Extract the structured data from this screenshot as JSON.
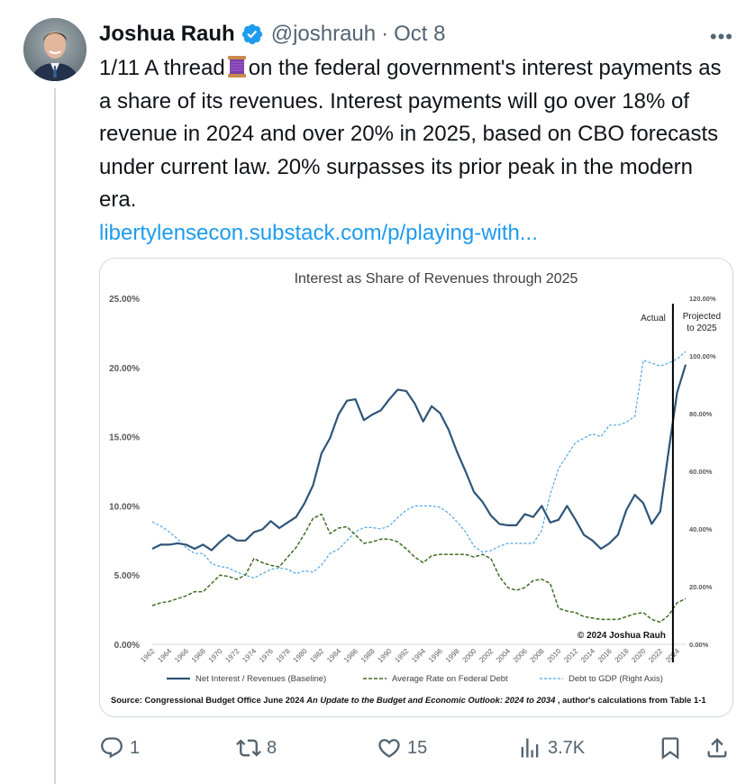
{
  "tweet": {
    "author_name": "Joshua Rauh",
    "handle": "@joshrauh",
    "separator": "·",
    "date": "Oct 8",
    "more_label": "•••",
    "text_before_icon": "1/11 A thread",
    "text_after_icon": "on the federal government's interest payments as a share of its revenues. Interest payments will go over 18% of revenue in 2024 and over 20% in 2025, based on CBO forecasts under current law. 20% surpasses its prior peak in the modern era.",
    "link_text": "libertylensecon.substack.com/p/playing-with...",
    "thread_icon": "spool-of-thread-emoji",
    "avatar_icon": "profile-photo",
    "verified_icon": "verified-badge-icon"
  },
  "actions": {
    "replies": "1",
    "reposts": "8",
    "likes": "15",
    "views": "3.7K",
    "reply_icon": "reply-icon",
    "repost_icon": "repost-icon",
    "like_icon": "heart-icon",
    "views_icon": "views-icon",
    "bookmark_icon": "bookmark-icon",
    "share_icon": "share-icon"
  },
  "colors": {
    "link": "#1d9bf0",
    "muted": "#536471",
    "verified": "#1d9bf0",
    "series_revenue": "#2f5577",
    "series_rate": "#3f6e24",
    "series_debt": "#4ea6e6"
  },
  "chart_data": {
    "type": "line",
    "title": "Interest as Share of Revenues through 2025",
    "annotation_actual": "Actual",
    "annotation_projected_1": "Projected",
    "annotation_projected_2": "to 2025",
    "copyright": "© 2024 Joshua Rauh",
    "source_prefix": "Source: Congressional Budget Office June 2024",
    "source_italic": "An Update to the Budget and Economic Outlook: 2024 to 2034",
    "source_suffix": ", author's calculations from Table 1-1",
    "left_ticks": [
      "0.00%",
      "5.00%",
      "10.00%",
      "15.00%",
      "20.00%",
      "25.00%"
    ],
    "right_ticks": [
      "0.00%",
      "20.00%",
      "40.00%",
      "60.00%",
      "80.00%",
      "100.00%",
      "120.00%"
    ],
    "ylim_left": [
      0,
      25
    ],
    "ylim_right": [
      0,
      120
    ],
    "x_ticks": [
      "1962",
      "1964",
      "1966",
      "1968",
      "1970",
      "1972",
      "1974",
      "1976",
      "1978",
      "1980",
      "1982",
      "1984",
      "1986",
      "1988",
      "1990",
      "1992",
      "1994",
      "1996",
      "1998",
      "2000",
      "2002",
      "2004",
      "2006",
      "2008",
      "2010",
      "2012",
      "2014",
      "2016",
      "2018",
      "2020",
      "2022",
      "2024"
    ],
    "projection_divider_x": 2023.5,
    "grid": false,
    "legend_position": "bottom",
    "x": [
      1962,
      1963,
      1964,
      1965,
      1966,
      1967,
      1968,
      1969,
      1970,
      1971,
      1972,
      1973,
      1974,
      1975,
      1976,
      1977,
      1978,
      1979,
      1980,
      1981,
      1982,
      1983,
      1984,
      1985,
      1986,
      1987,
      1988,
      1989,
      1990,
      1991,
      1992,
      1993,
      1994,
      1995,
      1996,
      1997,
      1998,
      1999,
      2000,
      2001,
      2002,
      2003,
      2004,
      2005,
      2006,
      2007,
      2008,
      2009,
      2010,
      2011,
      2012,
      2013,
      2014,
      2015,
      2016,
      2017,
      2018,
      2019,
      2020,
      2021,
      2022,
      2023,
      2024,
      2025
    ],
    "series": [
      {
        "name": "Net Interest / Revenues (Baseline)",
        "axis": "left",
        "style": "solid",
        "values": [
          6.9,
          7.2,
          7.2,
          7.3,
          7.2,
          6.9,
          7.2,
          6.8,
          7.4,
          7.9,
          7.5,
          7.5,
          8.1,
          8.3,
          8.9,
          8.4,
          8.8,
          9.2,
          10.2,
          11.5,
          13.8,
          14.9,
          16.6,
          17.6,
          17.7,
          16.2,
          16.6,
          16.9,
          17.7,
          18.4,
          18.3,
          17.4,
          16.1,
          17.2,
          16.7,
          15.5,
          13.9,
          12.5,
          11.0,
          10.3,
          9.3,
          8.7,
          8.6,
          8.6,
          9.4,
          9.2,
          10.0,
          8.8,
          9.0,
          10.0,
          9.0,
          7.9,
          7.5,
          6.9,
          7.3,
          7.9,
          9.7,
          10.8,
          10.2,
          8.7,
          9.6,
          14.0,
          18.2,
          20.2
        ]
      },
      {
        "name": "Average Rate on Federal Debt",
        "axis": "left",
        "style": "dashed",
        "values": [
          2.8,
          3.0,
          3.1,
          3.3,
          3.5,
          3.8,
          3.8,
          4.4,
          5.0,
          4.9,
          4.7,
          5.0,
          6.2,
          5.9,
          5.7,
          5.6,
          6.3,
          7.0,
          8.0,
          9.1,
          9.4,
          8.0,
          8.4,
          8.5,
          7.9,
          7.3,
          7.4,
          7.6,
          7.6,
          7.4,
          6.9,
          6.3,
          5.9,
          6.4,
          6.5,
          6.5,
          6.5,
          6.5,
          6.3,
          6.5,
          6.2,
          4.9,
          4.1,
          3.9,
          4.1,
          4.6,
          4.7,
          4.4,
          2.6,
          2.4,
          2.3,
          2.0,
          1.9,
          1.8,
          1.8,
          1.8,
          2.0,
          2.2,
          2.3,
          1.8,
          1.6,
          2.1,
          3.0,
          3.3
        ]
      },
      {
        "name": "Debt to GDP (Right Axis)",
        "axis": "right",
        "style": "dotted",
        "values": [
          42.5,
          41.0,
          39.0,
          36.5,
          33.5,
          31.5,
          31.5,
          28.0,
          27.0,
          26.5,
          25.0,
          24.0,
          23.0,
          24.5,
          26.0,
          26.5,
          26.0,
          24.5,
          25.5,
          25.0,
          27.5,
          31.5,
          33.0,
          36.0,
          39.0,
          40.5,
          40.5,
          40.0,
          41.0,
          44.0,
          46.5,
          48.0,
          48.0,
          48.0,
          47.5,
          45.5,
          42.5,
          39.0,
          34.0,
          32.0,
          32.5,
          34.0,
          35.0,
          35.0,
          35.0,
          35.0,
          39.5,
          52.0,
          61.0,
          65.5,
          70.0,
          71.5,
          73.0,
          72.0,
          76.0,
          76.0,
          77.0,
          79.0,
          98.5,
          97.5,
          96.5,
          97.5,
          99.0,
          101.5
        ]
      }
    ]
  }
}
